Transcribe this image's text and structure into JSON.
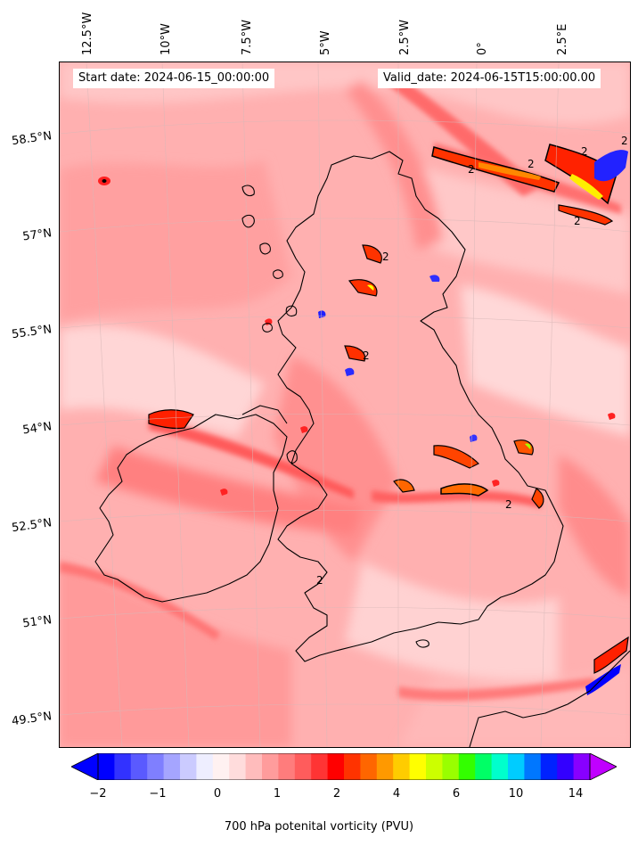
{
  "header": {
    "start_date": "Start date: 2024-06-15_00:00:00",
    "valid_date": "Valid_date: 2024-06-15T15:00:00.00"
  },
  "axes": {
    "lon_labels": [
      "12.5°W",
      "10°W",
      "7.5°W",
      "5°W",
      "2.5°W",
      "0°",
      "2.5°E"
    ],
    "lat_labels": [
      "58.5°N",
      "57°N",
      "55.5°N",
      "54°N",
      "52.5°N",
      "51°N",
      "49.5°N"
    ]
  },
  "contour": {
    "level_label": "2"
  },
  "colorbar": {
    "label": "700 hPa potenital vorticity (PVU)",
    "ticks": [
      "−2",
      "−1",
      "0",
      "1",
      "2",
      "4",
      "6",
      "10",
      "14"
    ],
    "colors": [
      "#0000ff",
      "#3232ff",
      "#5a5aff",
      "#7f7fff",
      "#a5a5ff",
      "#cbcbff",
      "#eeeeff",
      "#fff1f1",
      "#ffdcdc",
      "#ffbcbc",
      "#ff9c9c",
      "#ff7c7c",
      "#ff5c5c",
      "#ff3434",
      "#ff0000",
      "#ff3300",
      "#ff6600",
      "#ff9900",
      "#ffcc00",
      "#ffff00",
      "#ccff00",
      "#99ff00",
      "#33ff00",
      "#00ff66",
      "#00ffcc",
      "#00ccff",
      "#0077ff",
      "#0022ff",
      "#3300ff",
      "#8800ff"
    ],
    "under_color": "#0000ff",
    "over_color": "#c000ff"
  }
}
